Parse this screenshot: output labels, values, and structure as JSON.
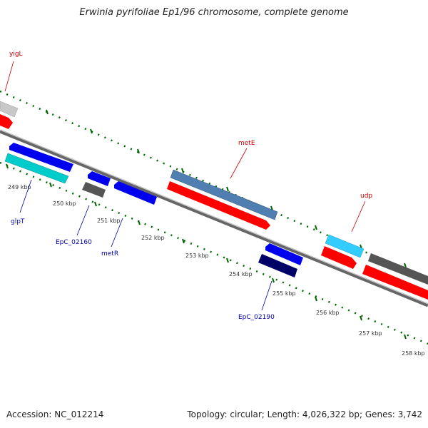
{
  "title": "Erwinia pyrifoliae Ep1/96 chromosome, complete genome",
  "accession": "Accession: NC_012214",
  "stats": "Topology: circular; Length: 4,026,322 bp; Genes: 3,742",
  "colors": {
    "backbone": "#8a8a8a",
    "tick_green": "#006600",
    "gene_label_red": "#cc0000",
    "gene_label_blue": "#0000aa"
  },
  "kbp_labels": [
    "249 kbp",
    "250 kbp",
    "251 kbp",
    "252 kbp",
    "253 kbp",
    "254 kbp",
    "255 kbp",
    "256 kbp",
    "257 kbp",
    "258 kbp"
  ],
  "gene_labels": {
    "yigL": "yigL",
    "metE": "metE",
    "udp": "udp",
    "glpT": "glpT",
    "EpC_02160": "EpC_02160",
    "metR": "metR",
    "EpC_02190": "EpC_02190"
  }
}
